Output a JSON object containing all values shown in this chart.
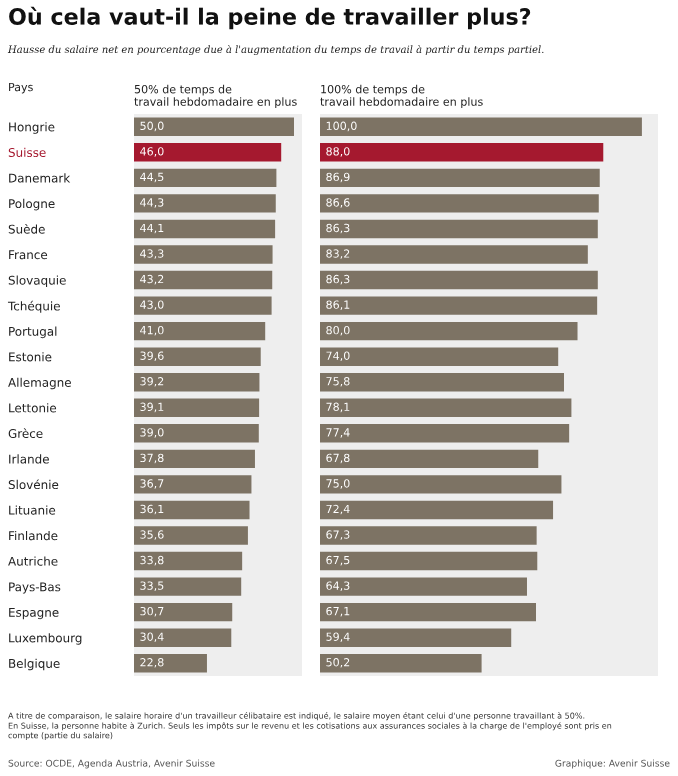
{
  "chart_data": [
    {
      "type": "bar",
      "orientation": "horizontal",
      "title": "Où cela vaut-il la peine de travailler plus?",
      "subtitle": "Hausse du salaire net en pourcentage due à l'augmentation du temps de travail à partir du temps partiel.",
      "ylabel": "Pays",
      "xlabel": "50% de temps de\ntravail hebdomadaire en plus",
      "categories": [
        "Hongrie",
        "Suisse",
        "Danemark",
        "Pologne",
        "Suède",
        "France",
        "Slovaquie",
        "Tchéquie",
        "Portugal",
        "Estonie",
        "Allemagne",
        "Lettonie",
        "Grèce",
        "Irlande",
        "Slovénie",
        "Lituanie",
        "Finlande",
        "Autriche",
        "Pays-Bas",
        "Espagne",
        "Luxembourg",
        "Belgique"
      ],
      "values": [
        50.0,
        46.0,
        44.5,
        44.3,
        44.1,
        43.3,
        43.2,
        43.0,
        41.0,
        39.6,
        39.2,
        39.1,
        39.0,
        37.8,
        36.7,
        36.1,
        35.6,
        33.8,
        33.5,
        30.7,
        30.4,
        22.8
      ],
      "value_labels": [
        "50,0",
        "46,0",
        "44,5",
        "44,3",
        "44,1",
        "43,3",
        "43,2",
        "43,0",
        "41,0",
        "39,6",
        "39,2",
        "39,1",
        "39,0",
        "37,8",
        "36,7",
        "36,1",
        "35,6",
        "33,8",
        "33,5",
        "30,7",
        "30,4",
        "22,8"
      ],
      "colors": [
        "#7d7364",
        "#a5192f",
        "#7d7364",
        "#7d7364",
        "#7d7364",
        "#7d7364",
        "#7d7364",
        "#7d7364",
        "#7d7364",
        "#7d7364",
        "#7d7364",
        "#7d7364",
        "#7d7364",
        "#7d7364",
        "#7d7364",
        "#7d7364",
        "#7d7364",
        "#7d7364",
        "#7d7364",
        "#7d7364",
        "#7d7364",
        "#7d7364"
      ],
      "tick_labels": "y",
      "grid": false,
      "annotations": [
        "A titre de comparaison, le salaire horaire d'un travailleur célibataire est indiqué, le salaire moyen étant celui d'une personne travaillant à 50%.\nEn Suisse, la personne habite à Zurich. Seuls les impôts sur le revenu et les cotisations aux assurances sociales à la charge de l'employé sont pris en\ncompte (partie du salaire)",
        "Source: OCDE, Agenda Austria, Avenir Suisse",
        "Graphique: Avenir Suisse"
      ]
    },
    {
      "type": "bar",
      "orientation": "horizontal",
      "xlabel": "100% de temps de\ntravail hebdomadaire en plus",
      "categories": [
        null,
        null,
        null,
        null,
        null,
        null,
        null,
        null,
        null,
        null,
        null,
        null,
        null,
        null,
        null,
        null,
        null,
        null,
        null,
        null,
        null,
        null
      ],
      "values": [
        100.0,
        88.0,
        86.9,
        86.6,
        86.3,
        83.2,
        86.3,
        86.1,
        80.0,
        74.0,
        75.8,
        78.1,
        77.4,
        67.8,
        75.0,
        72.4,
        67.3,
        67.5,
        64.3,
        67.1,
        59.4,
        50.2
      ],
      "value_labels": [
        "100,0",
        "88,0",
        "86,9",
        "86,6",
        "86,3",
        "83,2",
        "86,3",
        "86,1",
        "80,0",
        "74,0",
        "75,8",
        "78,1",
        "77,4",
        "67,8",
        "75,0",
        "72,4",
        "67,3",
        "67,5",
        "64,3",
        "67,1",
        "59,4",
        "50,2"
      ],
      "colors": [
        "#7d7364",
        "#a5192f",
        "#7d7364",
        "#7d7364",
        "#7d7364",
        "#7d7364",
        "#7d7364",
        "#7d7364",
        "#7d7364",
        "#7d7364",
        "#7d7364",
        "#7d7364",
        "#7d7364",
        "#7d7364",
        "#7d7364",
        "#7d7364",
        "#7d7364",
        "#7d7364",
        "#7d7364",
        "#7d7364",
        "#7d7364",
        "#7d7364"
      ],
      "tick_labels": false,
      "grid": false
    }
  ]
}
